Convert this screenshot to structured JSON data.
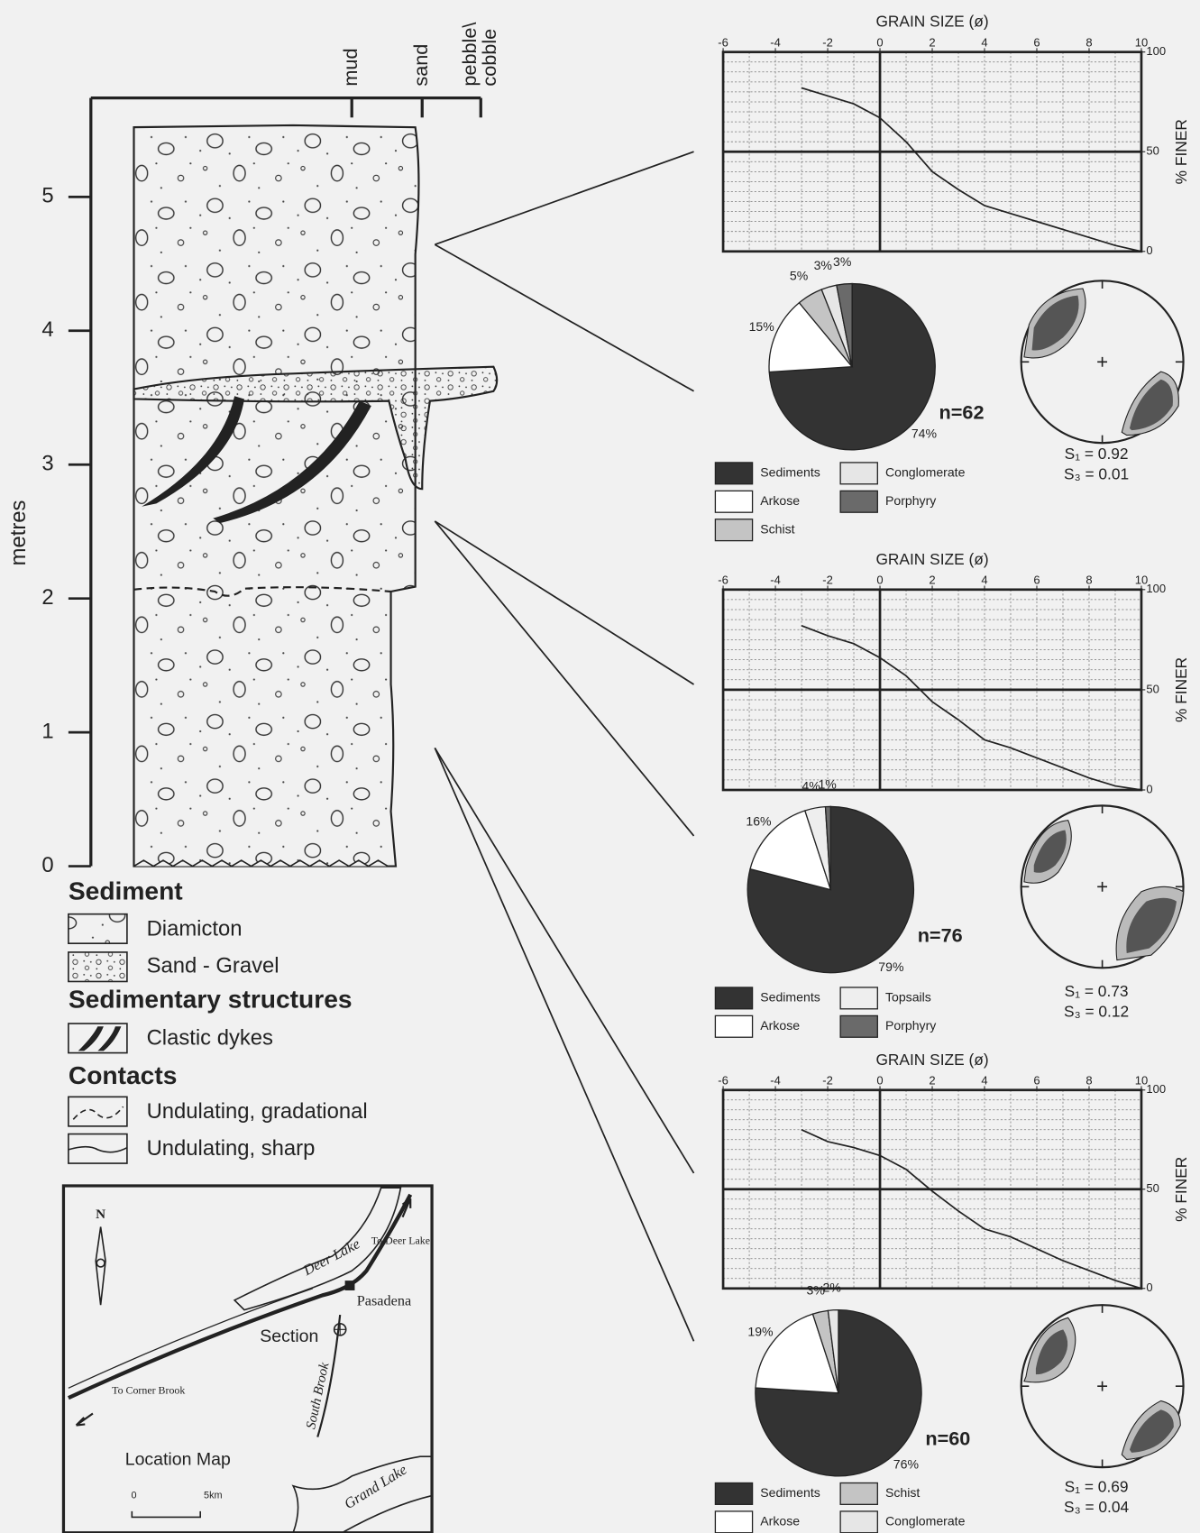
{
  "chart_data": [
    {
      "type": "line",
      "title": "GRAIN SIZE (ø)",
      "y_label": "% FINER",
      "x": [
        -3,
        -2,
        -1,
        0,
        1,
        2,
        3,
        4,
        5,
        6,
        7,
        8,
        9,
        10
      ],
      "values": [
        82,
        78,
        74,
        67,
        55,
        40,
        31,
        23,
        19,
        15,
        11,
        7,
        3,
        0
      ],
      "color": "#222222",
      "xlim": [
        -6,
        10
      ],
      "xticks": [
        -6,
        -4,
        -2,
        0,
        2,
        4,
        6,
        8,
        10
      ],
      "ylim": [
        0,
        100
      ],
      "yticks": [
        0,
        50,
        100
      ],
      "minor_grid": {
        "x": 1,
        "y": 5
      },
      "ref_lines": {
        "x": [
          0
        ],
        "y": [
          50
        ]
      }
    },
    {
      "type": "line",
      "title": "GRAIN SIZE (ø)",
      "y_label": "% FINER",
      "x": [
        -3,
        -2,
        -1,
        0,
        1,
        2,
        3,
        4,
        5,
        6,
        7,
        8,
        9,
        10
      ],
      "values": [
        82,
        77,
        73,
        66,
        57,
        44,
        35,
        25,
        21,
        16,
        11,
        6,
        2,
        0
      ],
      "color": "#222222",
      "xlim": [
        -6,
        10
      ],
      "xticks": [
        -6,
        -4,
        -2,
        0,
        2,
        4,
        6,
        8,
        10
      ],
      "ylim": [
        0,
        100
      ],
      "yticks": [
        0,
        50,
        100
      ],
      "minor_grid": {
        "x": 1,
        "y": 5
      },
      "ref_lines": {
        "x": [
          0
        ],
        "y": [
          50
        ]
      }
    },
    {
      "type": "line",
      "title": "GRAIN SIZE (ø)",
      "y_label": "% FINER",
      "x": [
        -3,
        -2,
        -1,
        0,
        1,
        2,
        3,
        4,
        5,
        6,
        7,
        8,
        9,
        10
      ],
      "values": [
        80,
        74,
        71,
        67,
        60,
        49,
        39,
        30,
        26,
        20,
        14,
        9,
        4,
        0
      ],
      "color": "#222222",
      "xlim": [
        -6,
        10
      ],
      "xticks": [
        -6,
        -4,
        -2,
        0,
        2,
        4,
        6,
        8,
        10
      ],
      "ylim": [
        0,
        100
      ],
      "yticks": [
        0,
        50,
        100
      ],
      "minor_grid": {
        "x": 1,
        "y": 5
      },
      "ref_lines": {
        "x": [
          0
        ],
        "y": [
          50
        ]
      }
    },
    {
      "type": "pie",
      "categories": [
        "Sediments",
        "Arkose",
        "Schist",
        "Conglomerate",
        "Porphyry"
      ],
      "values": [
        74,
        15,
        5,
        3,
        3
      ],
      "value_labels": [
        "74%",
        "15%",
        "5%",
        "3%",
        "3%"
      ],
      "colors": [
        "#333333",
        "#ffffff",
        "#c4c4c4",
        "#e6e6e6",
        "#6a6a6a"
      ],
      "annotation": "n=62",
      "stats": [
        "S₁ = 0.92",
        "S₃ = 0.01"
      ]
    },
    {
      "type": "pie",
      "categories": [
        "Sediments",
        "Arkose",
        "Topsails",
        "Porphyry"
      ],
      "values": [
        79,
        16,
        4,
        1
      ],
      "value_labels": [
        "79%",
        "16%",
        "4%",
        "1%"
      ],
      "colors": [
        "#333333",
        "#ffffff",
        "#eeeeee",
        "#6a6a6a"
      ],
      "annotation": "n=76",
      "stats": [
        "S₁ = 0.73",
        "S₃ = 0.12"
      ]
    },
    {
      "type": "pie",
      "categories": [
        "Sediments",
        "Arkose",
        "Schist",
        "Conglomerate"
      ],
      "values": [
        76,
        19,
        3,
        2
      ],
      "value_labels": [
        "76%",
        "19%",
        "3%",
        "2%"
      ],
      "colors": [
        "#333333",
        "#ffffff",
        "#c4c4c4",
        "#e6e6e6"
      ],
      "annotation": "n=60",
      "stats": [
        "S₁ = 0.69",
        "S₃ = 0.04"
      ]
    }
  ],
  "section": {
    "y_label": "metres",
    "ylim": [
      0,
      5.52
    ],
    "yticks": [
      0,
      1,
      2,
      3,
      4,
      5
    ],
    "columns": [
      "mud",
      "sand",
      [
        "pebble\\",
        "cobble"
      ]
    ]
  },
  "legend": {
    "groups": [
      {
        "title": "Sediment",
        "items": [
          "Diamicton",
          "Sand - Gravel"
        ]
      },
      {
        "title": "Sedimentary structures",
        "items": [
          "Clastic dykes"
        ]
      },
      {
        "title": "Contacts",
        "items": [
          "Undulating, gradational",
          "Undulating, sharp"
        ]
      }
    ]
  },
  "map": {
    "title": "Location Map",
    "labels": [
      "N",
      "Deer Lake",
      "To Deer Lake",
      "Pasadena",
      "Section",
      "South Brook",
      "To Corner Brook",
      "Grand Lake"
    ],
    "scale": [
      "0",
      "5km"
    ]
  }
}
